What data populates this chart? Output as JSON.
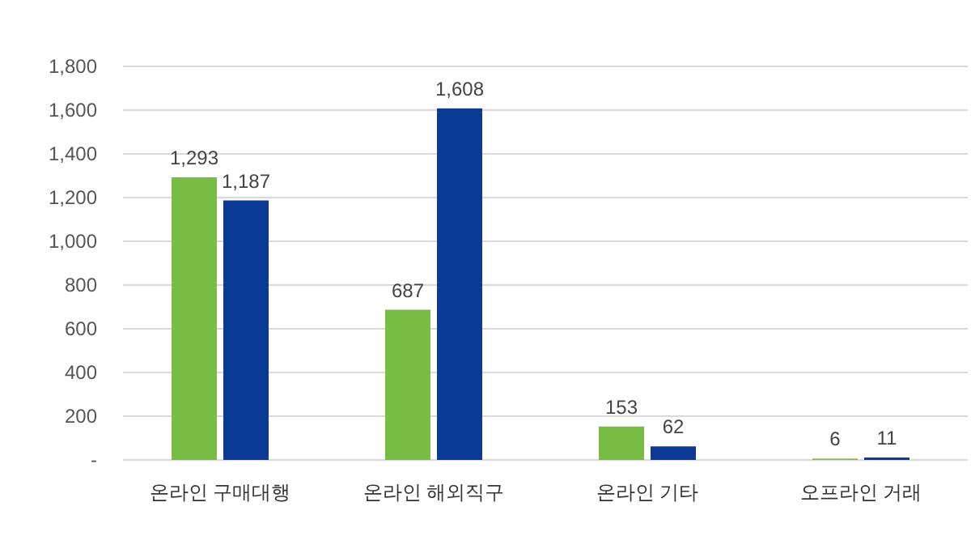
{
  "chart_data": {
    "type": "bar",
    "categories": [
      "온라인 구매대행",
      "온라인 해외직구",
      "온라인 기타",
      "오프라인 거래"
    ],
    "series": [
      {
        "color": "#77bc45",
        "values": [
          1293,
          687,
          153,
          6
        ],
        "value_labels": [
          "1,293",
          "687",
          "153",
          "6"
        ]
      },
      {
        "color": "#0a3a94",
        "values": [
          1187,
          1608,
          62,
          11
        ],
        "value_labels": [
          "1,187",
          "1,608",
          "62",
          "11"
        ]
      }
    ],
    "ylim": [
      0,
      1800
    ],
    "yticks": [
      {
        "value": 0,
        "label": "-"
      },
      {
        "value": 200,
        "label": "200"
      },
      {
        "value": 400,
        "label": "400"
      },
      {
        "value": 600,
        "label": "600"
      },
      {
        "value": 800,
        "label": "800"
      },
      {
        "value": 1000,
        "label": "1,000"
      },
      {
        "value": 1200,
        "label": "1,200"
      },
      {
        "value": 1400,
        "label": "1,400"
      },
      {
        "value": 1600,
        "label": "1,600"
      },
      {
        "value": 1800,
        "label": "1,800"
      }
    ],
    "grid": "y"
  }
}
